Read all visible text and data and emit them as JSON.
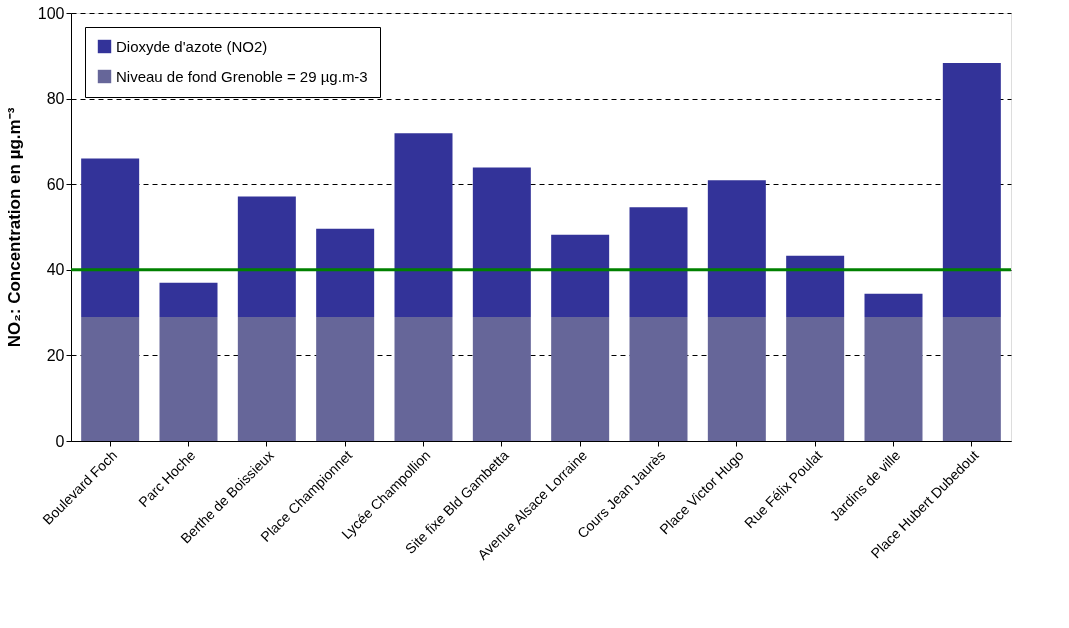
{
  "chart_data": {
    "type": "bar",
    "stacked": true,
    "ylabel": "NO₂: Concentration en µg.m⁻³",
    "categories": [
      "Boulevard Foch",
      "Parc Hoche",
      "Berthe de Boissieux",
      "Place Championnet",
      "Lycée Champollion",
      "Site fixe Bld Gambetta",
      "Avenue Alsace Lorraine",
      "Cours Jean Jaurès",
      "Place Victor Hugo",
      "Rue Félix Poulat",
      "Jardins de ville",
      "Place Hubert Dubedout"
    ],
    "series": [
      {
        "name": "Niveau de fond Grenoble = 29 µg.m-3",
        "color": "#666699",
        "values": [
          29,
          29,
          29,
          29,
          29,
          29,
          29,
          29,
          29,
          29,
          29,
          29
        ]
      },
      {
        "name": "Dioxyde d'azote (NO2)",
        "color": "#333399",
        "values": [
          37,
          8,
          28.1,
          20.6,
          42.9,
          34.9,
          19.2,
          25.6,
          31.9,
          14.3,
          5.4,
          59.3
        ]
      }
    ],
    "ylim": [
      0,
      100
    ],
    "yticks": [
      0,
      20,
      40,
      60,
      80,
      100
    ],
    "grid": "y",
    "legend": "top left",
    "ref_lines": [
      {
        "axis": "y",
        "value": 40,
        "color": "#008000"
      }
    ]
  }
}
